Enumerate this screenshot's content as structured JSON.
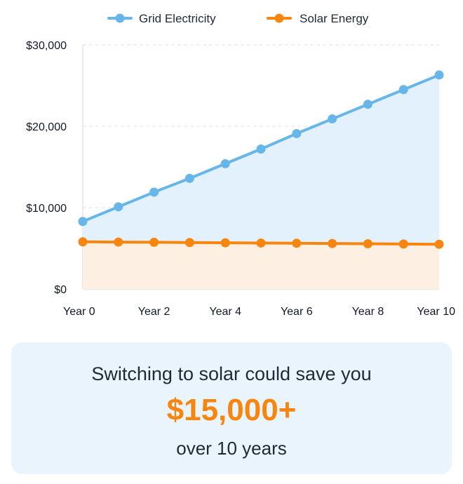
{
  "chart_data": {
    "type": "line",
    "x": [
      0,
      1,
      2,
      3,
      4,
      5,
      6,
      7,
      8,
      9,
      10
    ],
    "xtick_labels": [
      "Year 0",
      "Year 2",
      "Year 4",
      "Year 6",
      "Year 8",
      "Year 10"
    ],
    "xtick_values": [
      0,
      2,
      4,
      6,
      8,
      10
    ],
    "ytick_labels": [
      "$0",
      "$10,000",
      "$20,000",
      "$30,000"
    ],
    "ytick_values": [
      0,
      10000,
      20000,
      30000
    ],
    "ylim": [
      0,
      30000
    ],
    "xlim": [
      0,
      10
    ],
    "grid": true,
    "legend_position": "top-center",
    "series": [
      {
        "name": "Grid Electricity",
        "color": "#66b6ea",
        "fill": "#e3f1fc",
        "values": [
          8300,
          10100,
          11900,
          13600,
          15400,
          17200,
          19100,
          20900,
          22700,
          24500,
          26300
        ]
      },
      {
        "name": "Solar Energy",
        "color": "#f7860f",
        "fill": "#fdefe2",
        "values": [
          5800,
          5770,
          5740,
          5710,
          5680,
          5650,
          5620,
          5590,
          5560,
          5530,
          5500
        ]
      }
    ]
  },
  "savings": {
    "line1": "Switching to solar could save you",
    "amount": "$15,000+",
    "line3": "over 10 years"
  }
}
